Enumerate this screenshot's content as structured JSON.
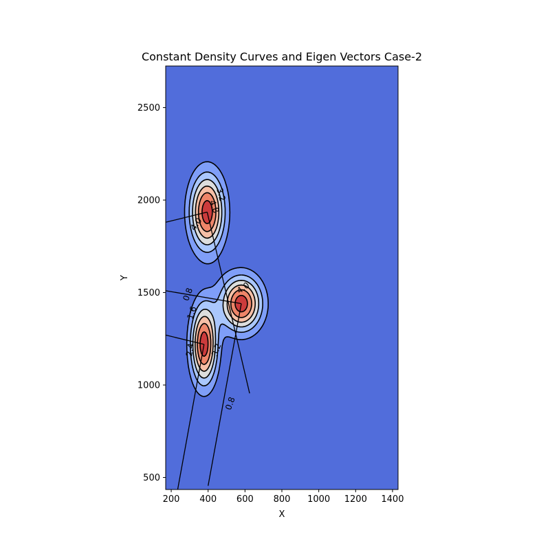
{
  "chart_data": {
    "type": "contour",
    "title": "Constant Density Curves and Eigen Vectors Case-2",
    "xlabel": "X",
    "ylabel": "Y",
    "xlim": [
      170,
      1430
    ],
    "ylim": [
      435,
      2725
    ],
    "x_ticks": [
      200,
      400,
      600,
      800,
      1000,
      1200,
      1400
    ],
    "y_ticks": [
      500,
      1000,
      1500,
      2000,
      2500
    ],
    "background_color": "#516ddb",
    "levels": [
      0.8,
      1.6,
      2.4,
      3.2,
      4.0,
      4.8
    ],
    "level_colors": [
      "#7f9ef8",
      "#aac7fd",
      "#dcdddd",
      "#f6bfa6",
      "#ee8569",
      "#cc3b3c"
    ],
    "series": [
      {
        "mean": [
          395,
          1935
        ],
        "sigma": [
          63,
          140
        ]
      },
      {
        "mean": [
          580,
          1440
        ],
        "sigma": [
          75,
          100
        ]
      },
      {
        "mean": [
          378,
          1220
        ],
        "sigma": [
          48,
          145
        ]
      }
    ],
    "eigen_vectors": [
      {
        "from": [
          395,
          1935
        ],
        "to": [
          170,
          1880
        ]
      },
      {
        "from": [
          395,
          1935
        ],
        "to": [
          625,
          955
        ]
      },
      {
        "from": [
          580,
          1440
        ],
        "to": [
          170,
          1510
        ]
      },
      {
        "from": [
          580,
          1440
        ],
        "to": [
          400,
          455
        ]
      },
      {
        "from": [
          378,
          1220
        ],
        "to": [
          170,
          1270
        ]
      },
      {
        "from": [
          378,
          1220
        ],
        "to": [
          235,
          435
        ]
      }
    ],
    "contour_labels": [
      {
        "text": "3.2",
        "x": 470,
        "y": 2030,
        "angle": 75
      },
      {
        "text": "4.8",
        "x": 433,
        "y": 1965,
        "angle": 70
      },
      {
        "text": "4.0",
        "x": 335,
        "y": 1870,
        "angle": -55
      },
      {
        "text": "4.0",
        "x": 590,
        "y": 1525,
        "angle": -35
      },
      {
        "text": "0.8",
        "x": 290,
        "y": 1490,
        "angle": -70
      },
      {
        "text": "1.6",
        "x": 312,
        "y": 1390,
        "angle": -72
      },
      {
        "text": "2.4",
        "x": 302,
        "y": 1190,
        "angle": -80
      },
      {
        "text": "3.2",
        "x": 445,
        "y": 1190,
        "angle": -70
      },
      {
        "text": "0.8",
        "x": 520,
        "y": 900,
        "angle": -70
      }
    ]
  }
}
